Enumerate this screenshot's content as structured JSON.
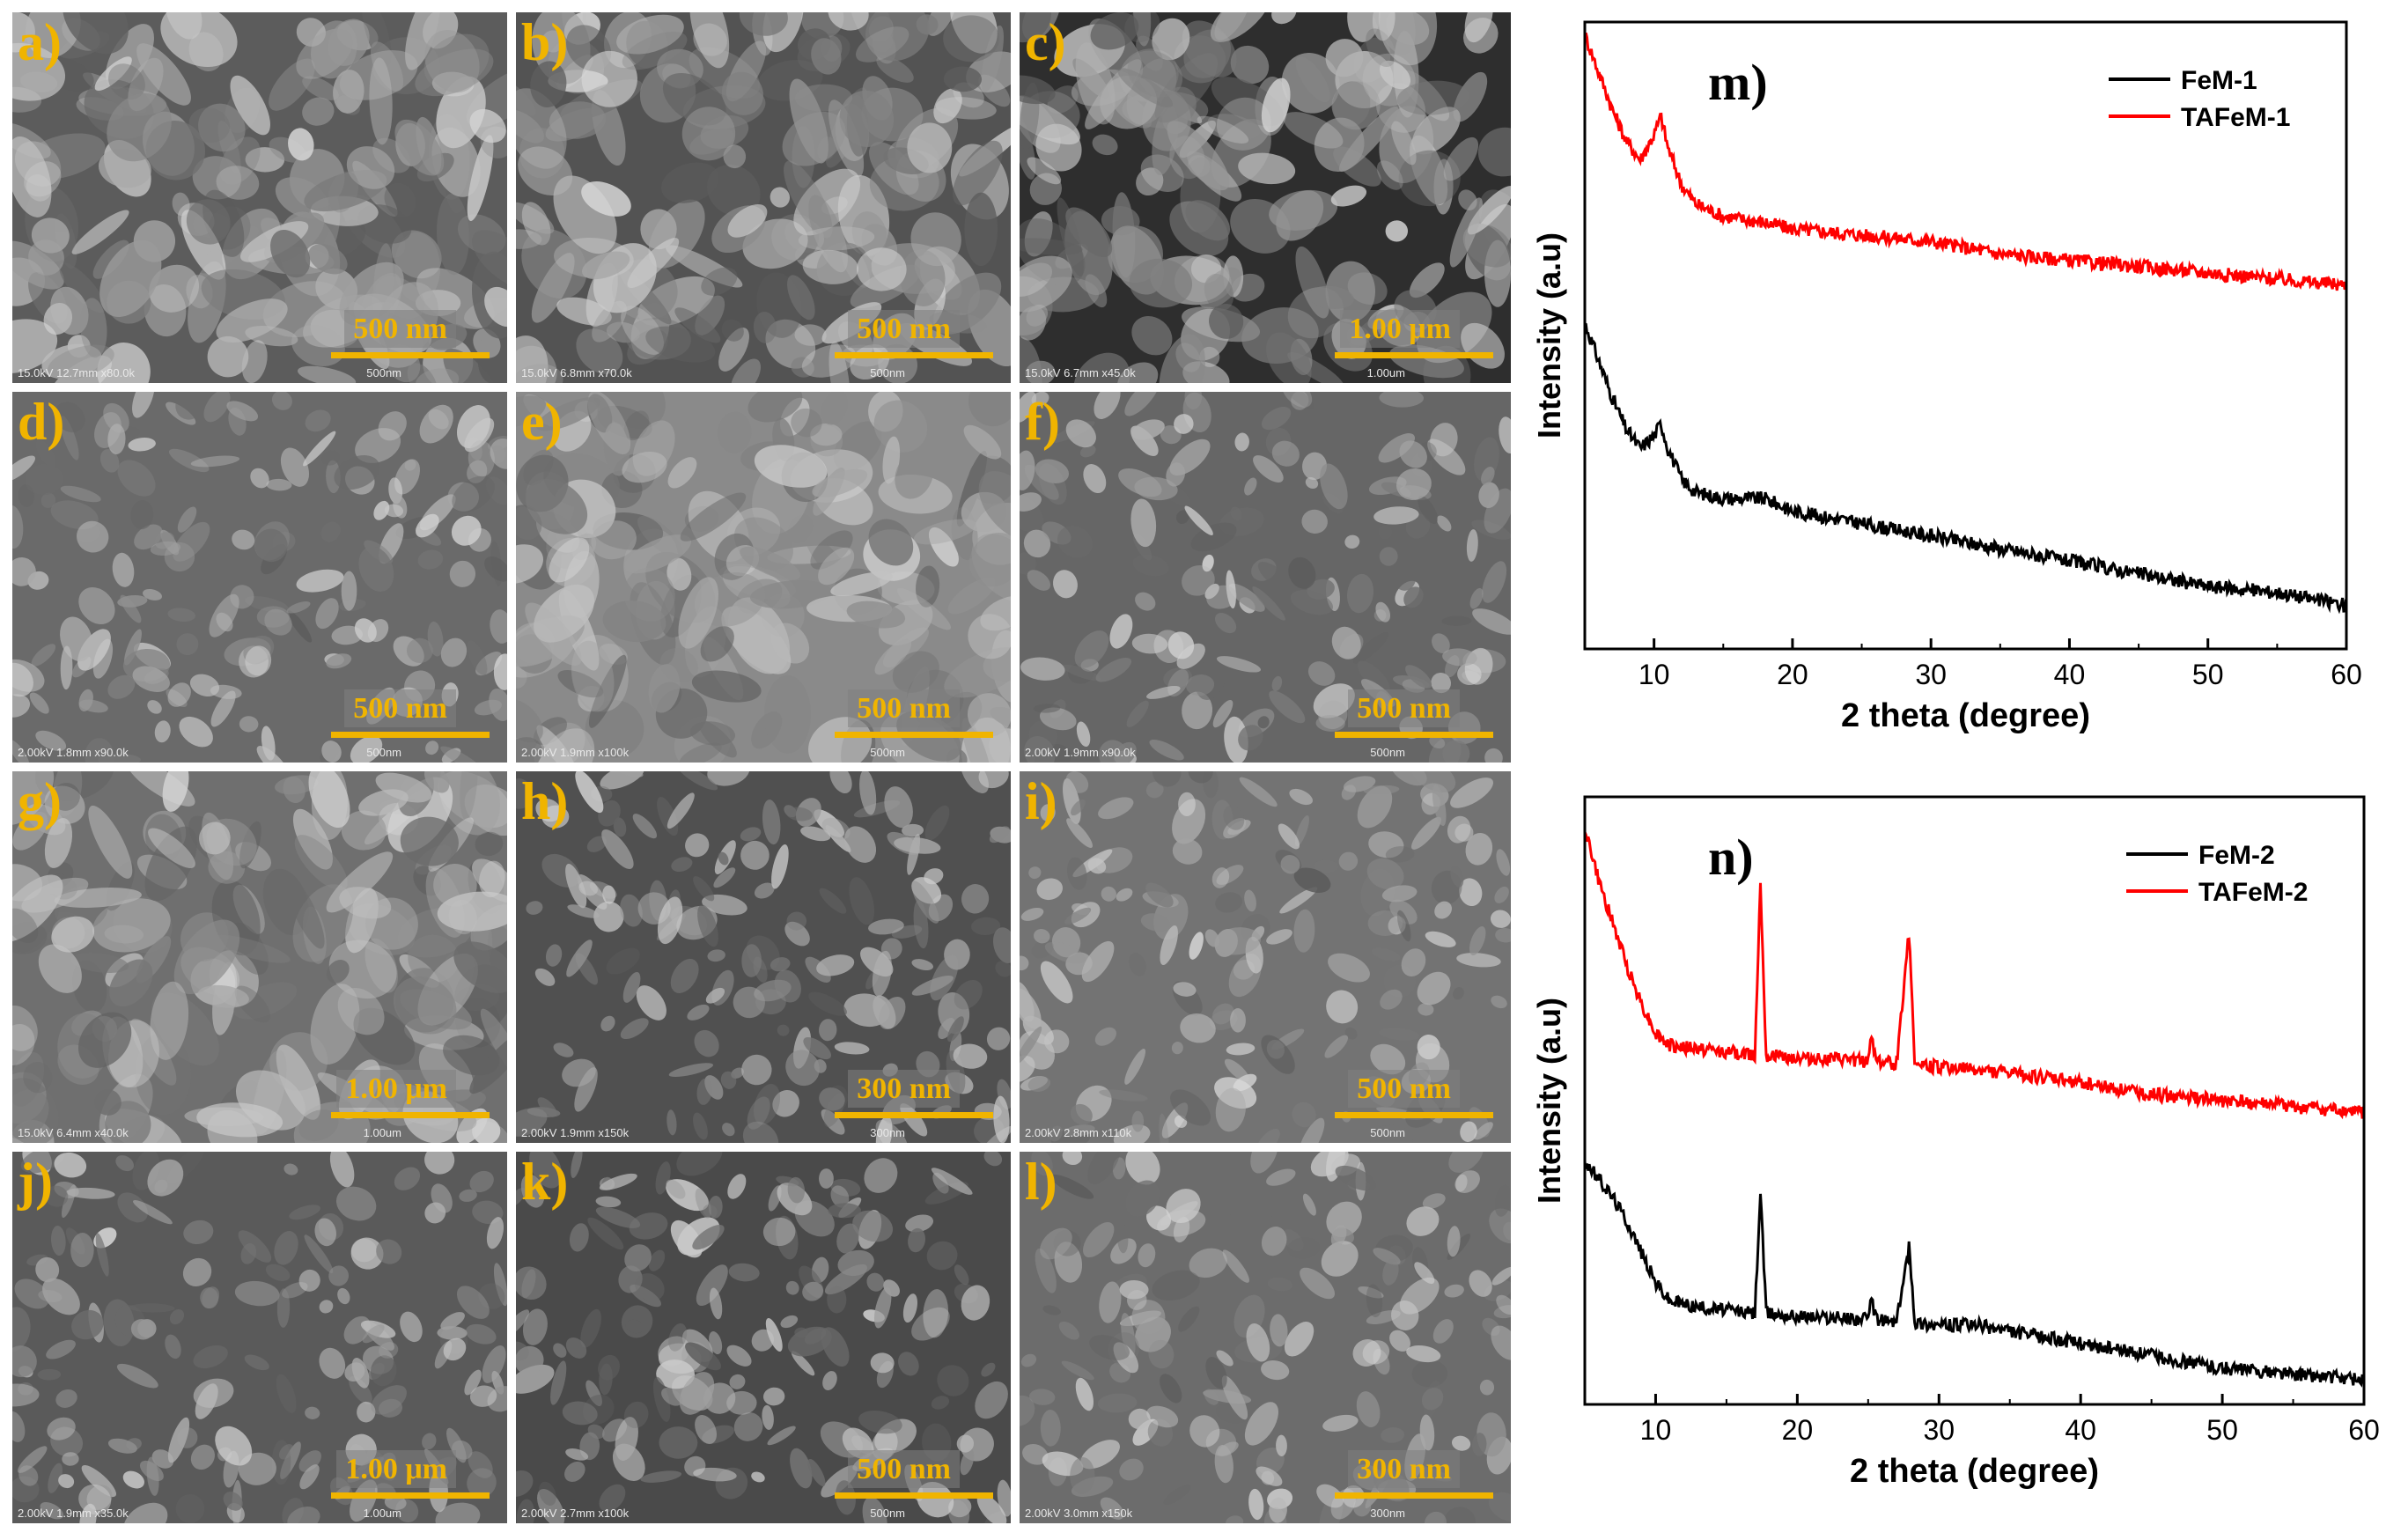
{
  "sem_panels": [
    {
      "label": "a)",
      "scale": "500 nm",
      "meta": "15.0kV 12.7mm x80.0k",
      "meta_scale": "500nm",
      "tone": "#5c5c5c"
    },
    {
      "label": "b)",
      "scale": "500 nm",
      "meta": "15.0kV 6.8mm x70.0k",
      "meta_scale": "500nm",
      "tone": "#535353"
    },
    {
      "label": "c)",
      "scale": "1.00 μm",
      "meta": "15.0kV 6.7mm x45.0k",
      "meta_scale": "1.00um",
      "tone": "#2e2e2e"
    },
    {
      "label": "d)",
      "scale": "500 nm",
      "meta": "2.00kV 1.8mm x90.0k",
      "meta_scale": "500nm",
      "tone": "#6a6a6a"
    },
    {
      "label": "e)",
      "scale": "500 nm",
      "meta": "2.00kV 1.9mm x100k",
      "meta_scale": "500nm",
      "tone": "#8a8a8a"
    },
    {
      "label": "f)",
      "scale": "500 nm",
      "meta": "2.00kV 1.9mm x90.0k",
      "meta_scale": "500nm",
      "tone": "#666666"
    },
    {
      "label": "g)",
      "scale": "1.00 μm",
      "meta": "15.0kV 6.4mm x40.0k",
      "meta_scale": "1.00um",
      "tone": "#6f6f6f"
    },
    {
      "label": "h)",
      "scale": "300 nm",
      "meta": "2.00kV 1.9mm x150k",
      "meta_scale": "300nm",
      "tone": "#505050"
    },
    {
      "label": "i)",
      "scale": "500 nm",
      "meta": "2.00kV 2.8mm x110k",
      "meta_scale": "500nm",
      "tone": "#737373"
    },
    {
      "label": "j)",
      "scale": "1.00 μm",
      "meta": "2.00kV 1.9mm x35.0k",
      "meta_scale": "1.00um",
      "tone": "#5a5a5a"
    },
    {
      "label": "k)",
      "scale": "500 nm",
      "meta": "2.00kV 2.7mm x100k",
      "meta_scale": "500nm",
      "tone": "#4a4a4a"
    },
    {
      "label": "l)",
      "scale": "300 nm",
      "meta": "2.00kV 3.0mm x150k",
      "meta_scale": "300nm",
      "tone": "#6c6c6c"
    }
  ],
  "chart_data": [
    {
      "type": "line",
      "panel_label": "m)",
      "xlabel": "2 theta (degree)",
      "ylabel": "Intensity (a.u)",
      "xlim": [
        5,
        60
      ],
      "xticks": [
        10,
        20,
        30,
        40,
        50,
        60
      ],
      "yticks_shown": false,
      "legend_position": "top-right",
      "series": [
        {
          "name": "FeM-1",
          "color": "#000000",
          "x": [
            5,
            6,
            7,
            8,
            9,
            10,
            10.5,
            11,
            12,
            13,
            15,
            18,
            20,
            25,
            30,
            35,
            40,
            45,
            50,
            55,
            60
          ],
          "y": [
            0.52,
            0.46,
            0.4,
            0.35,
            0.32,
            0.34,
            0.36,
            0.32,
            0.27,
            0.25,
            0.24,
            0.24,
            0.22,
            0.2,
            0.18,
            0.16,
            0.14,
            0.12,
            0.1,
            0.09,
            0.07
          ]
        },
        {
          "name": "TAFeM-1",
          "color": "#ff0000",
          "x": [
            5,
            6,
            7,
            8,
            9,
            10,
            10.5,
            11,
            12,
            13,
            15,
            18,
            20,
            25,
            30,
            35,
            40,
            45,
            50,
            55,
            60
          ],
          "y": [
            0.98,
            0.92,
            0.86,
            0.81,
            0.78,
            0.82,
            0.85,
            0.8,
            0.74,
            0.71,
            0.69,
            0.68,
            0.67,
            0.66,
            0.65,
            0.63,
            0.62,
            0.61,
            0.6,
            0.59,
            0.58
          ]
        }
      ]
    },
    {
      "type": "line",
      "panel_label": "n)",
      "xlabel": "2 theta (degree)",
      "ylabel": "Intensity (a.u)",
      "xlim": [
        5,
        60
      ],
      "xticks": [
        10,
        20,
        30,
        40,
        50,
        60
      ],
      "yticks_shown": false,
      "legend_position": "top-right",
      "series": [
        {
          "name": "FeM-2",
          "color": "#000000",
          "x": [
            5,
            6,
            7,
            8,
            9,
            10,
            11,
            13,
            15,
            17,
            17.4,
            17.8,
            20,
            25,
            25.2,
            25.6,
            27,
            27.9,
            28.3,
            30,
            33,
            35,
            40,
            45,
            50,
            55,
            60
          ],
          "y": [
            0.4,
            0.37,
            0.34,
            0.3,
            0.25,
            0.2,
            0.17,
            0.16,
            0.155,
            0.15,
            0.35,
            0.15,
            0.145,
            0.14,
            0.17,
            0.14,
            0.135,
            0.26,
            0.135,
            0.13,
            0.13,
            0.12,
            0.1,
            0.08,
            0.06,
            0.05,
            0.04
          ]
        },
        {
          "name": "TAFeM-2",
          "color": "#ff0000",
          "x": [
            5,
            6,
            7,
            8,
            9,
            10,
            11,
            13,
            15,
            17,
            17.4,
            17.8,
            20,
            25,
            25.2,
            25.6,
            27,
            27.9,
            28.3,
            30,
            33,
            35,
            40,
            45,
            50,
            55,
            60
          ],
          "y": [
            0.95,
            0.86,
            0.79,
            0.72,
            0.66,
            0.61,
            0.59,
            0.585,
            0.58,
            0.575,
            0.86,
            0.575,
            0.57,
            0.565,
            0.61,
            0.565,
            0.56,
            0.78,
            0.56,
            0.555,
            0.55,
            0.545,
            0.53,
            0.51,
            0.5,
            0.49,
            0.48
          ]
        }
      ]
    }
  ]
}
